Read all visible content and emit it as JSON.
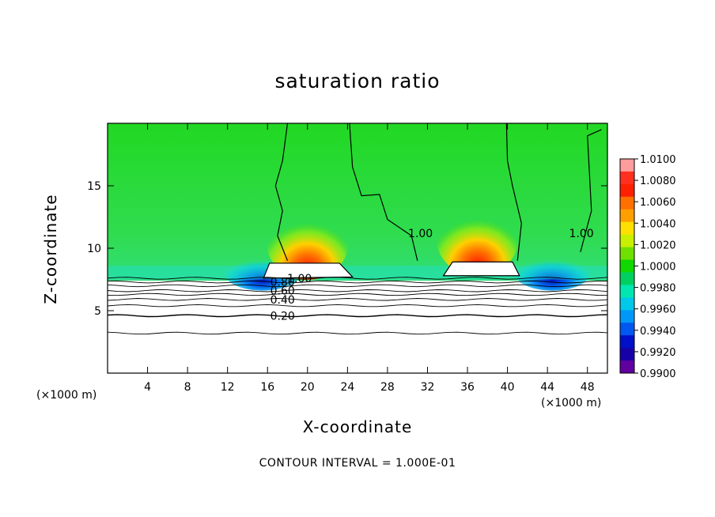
{
  "chart_data": {
    "type": "heatmap",
    "title": "saturation ratio",
    "xlabel": "X-coordinate",
    "ylabel": "Z-coordinate",
    "x_unit": "(×1000 m)",
    "z_unit": "(×1000 m)",
    "xlim": [
      0,
      50
    ],
    "ylim": [
      0,
      20
    ],
    "x_ticks": [
      4,
      8,
      12,
      16,
      20,
      24,
      28,
      32,
      36,
      40,
      44,
      48
    ],
    "y_ticks": [
      5,
      10,
      15
    ],
    "contour_interval_text": "CONTOUR INTERVAL = 1.000E-01",
    "colorbar": {
      "labels": [
        "1.0100",
        "1.0080",
        "1.0060",
        "1.0040",
        "1.0020",
        "1.0000",
        "0.9980",
        "0.9960",
        "0.9940",
        "0.9920",
        "0.9900"
      ],
      "colors": [
        "#ff9c9c",
        "#ff3020",
        "#ff2000",
        "#ff7000",
        "#ffa000",
        "#ffe000",
        "#c8f000",
        "#70e000",
        "#10d800",
        "#00d060",
        "#00e8b0",
        "#00c8e8",
        "#0098f8",
        "#0058f0",
        "#0010c8",
        "#1800a8",
        "#6000a0"
      ]
    },
    "contour_labels": [
      {
        "text": "0.20",
        "x": 17.5,
        "z": 4.6
      },
      {
        "text": "0.40",
        "x": 17.5,
        "z": 5.9
      },
      {
        "text": "0.60",
        "x": 17.5,
        "z": 6.6
      },
      {
        "text": "0.80",
        "x": 17.5,
        "z": 7.3
      },
      {
        "text": "1.00",
        "x": 19.2,
        "z": 7.6
      },
      {
        "text": "1.00",
        "x": 31.3,
        "z": 11.2
      },
      {
        "text": "1.00",
        "x": 47.4,
        "z": 11.2
      }
    ],
    "warm_maxima": [
      {
        "x": 20,
        "z": 10.5,
        "value": 1.0065
      },
      {
        "x": 37,
        "z": 10.8,
        "value": 1.006
      }
    ],
    "cold_minima": [
      {
        "x": 15.5,
        "z": 8.0,
        "value": 0.994
      },
      {
        "x": 44.5,
        "z": 8.0,
        "value": 0.993
      }
    ]
  }
}
